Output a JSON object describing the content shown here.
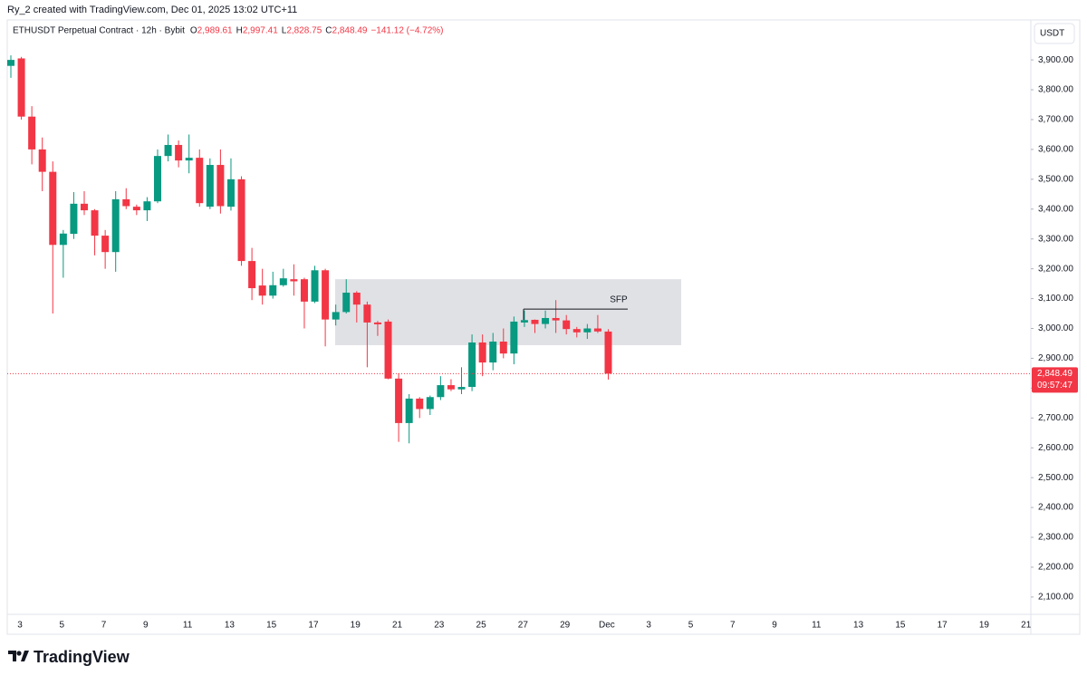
{
  "header": "Ry_2 created with TradingView.com, Dec 01, 2025 13:02 UTC+11",
  "legend": {
    "symbol": "ETHUSDT Perpetual Contract · 12h · Bybit",
    "items": [
      {
        "key": "O",
        "value": "2,989.61"
      },
      {
        "key": "H",
        "value": "2,997.41"
      },
      {
        "key": "L",
        "value": "2,828.75"
      },
      {
        "key": "C",
        "value": "2,848.49"
      }
    ],
    "change": "−141.12 (−4.72%)"
  },
  "currency": "USDT",
  "brand": "TradingView",
  "chart_data": {
    "type": "candlestick",
    "up_color": "#089981",
    "down_color": "#f23645",
    "open": [
      3880,
      3905,
      3710,
      3600,
      3525,
      3280,
      3317,
      3418,
      3396,
      3311,
      3256,
      3433,
      3408,
      3396,
      3426,
      3578,
      3615,
      3563,
      3572,
      3408,
      3548,
      3408,
      3500,
      3226,
      3144,
      3110,
      3145,
      3165,
      3165,
      3090,
      3195,
      3030,
      3055,
      3120,
      3080,
      3020,
      3023,
      2832,
      2683,
      2765,
      2730,
      2770,
      2810,
      2796,
      2804,
      2953,
      2886,
      2956,
      2916,
      3020,
      3029,
      3015,
      3035,
      3027,
      2998,
      2987,
      3000,
      2989.61
    ],
    "high": [
      3915,
      3910,
      3745,
      3640,
      3560,
      3330,
      3457,
      3460,
      3400,
      3330,
      3460,
      3470,
      3415,
      3440,
      3600,
      3650,
      3630,
      3650,
      3600,
      3570,
      3600,
      3570,
      3510,
      3270,
      3200,
      3190,
      3200,
      3215,
      3170,
      3210,
      3200,
      3080,
      3165,
      3125,
      3090,
      3025,
      3030,
      2850,
      2780,
      2770,
      2775,
      2840,
      2830,
      2870,
      2980,
      2980,
      2985,
      3000,
      3040,
      3060,
      3030,
      3060,
      3095,
      3045,
      3005,
      3015,
      3045,
      2997.41
    ],
    "low": [
      3840,
      3700,
      3550,
      3460,
      3050,
      3170,
      3300,
      3380,
      3245,
      3200,
      3190,
      3400,
      3380,
      3360,
      3420,
      3560,
      3540,
      3520,
      3408,
      3400,
      3385,
      3395,
      3210,
      3095,
      3080,
      3100,
      3140,
      3110,
      3000,
      3085,
      2940,
      3010,
      3050,
      3020,
      2870,
      2975,
      2830,
      2620,
      2615,
      2700,
      2710,
      2760,
      2790,
      2780,
      2790,
      2840,
      2860,
      2900,
      2880,
      3005,
      2985,
      3000,
      2985,
      2980,
      2970,
      2965,
      2985,
      2828.75
    ],
    "close": [
      3900,
      3710,
      3600,
      3525,
      3280,
      3318,
      3418,
      3396,
      3311,
      3256,
      3433,
      3410,
      3396,
      3426,
      3578,
      3615,
      3563,
      3572,
      3420,
      3548,
      3410,
      3500,
      3226,
      3135,
      3110,
      3145,
      3168,
      3158,
      3090,
      3195,
      3030,
      3055,
      3120,
      3080,
      3020,
      3014,
      2832,
      2683,
      2765,
      2730,
      2770,
      2810,
      2796,
      2804,
      2953,
      2886,
      2956,
      2916,
      3023,
      3028,
      3015,
      3035,
      3027,
      2998,
      2987,
      3000,
      2990,
      2848.49
    ],
    "x_labels": [
      "3",
      "5",
      "7",
      "9",
      "11",
      "13",
      "15",
      "17",
      "19",
      "21",
      "23",
      "25",
      "27",
      "29",
      "Dec",
      "3",
      "5",
      "7",
      "9",
      "11",
      "13",
      "15",
      "17",
      "19",
      "21"
    ],
    "ylim": [
      2042,
      3955
    ],
    "yticks": [
      {
        "value": 3900,
        "label": "3,900.00"
      },
      {
        "value": 3800,
        "label": "3,800.00"
      },
      {
        "value": 3700,
        "label": "3,700.00"
      },
      {
        "value": 3600,
        "label": "3,600.00"
      },
      {
        "value": 3500,
        "label": "3,500.00"
      },
      {
        "value": 3400,
        "label": "3,400.00"
      },
      {
        "value": 3300,
        "label": "3,300.00"
      },
      {
        "value": 3200,
        "label": "3,200.00"
      },
      {
        "value": 3100,
        "label": "3,100.00"
      },
      {
        "value": 3000,
        "label": "3,000.00"
      },
      {
        "value": 2900,
        "label": "2,900.00"
      },
      {
        "value": 2800,
        "label": "2,800.00"
      },
      {
        "value": 2700,
        "label": "2,700.00"
      },
      {
        "value": 2600,
        "label": "2,600.00"
      },
      {
        "value": 2500,
        "label": "2,500.00"
      },
      {
        "value": 2400,
        "label": "2,400.00"
      },
      {
        "value": 2300,
        "label": "2,300.00"
      },
      {
        "value": 2200,
        "label": "2,200.00"
      },
      {
        "value": 2100,
        "label": "2,100.00"
      }
    ],
    "zone": {
      "low": 2944,
      "high": 3165
    },
    "sfp": {
      "level": 3065,
      "label": "SFP"
    },
    "last_price": {
      "value": 2848.49,
      "label": "2,848.49",
      "countdown": "09:57:47"
    }
  }
}
